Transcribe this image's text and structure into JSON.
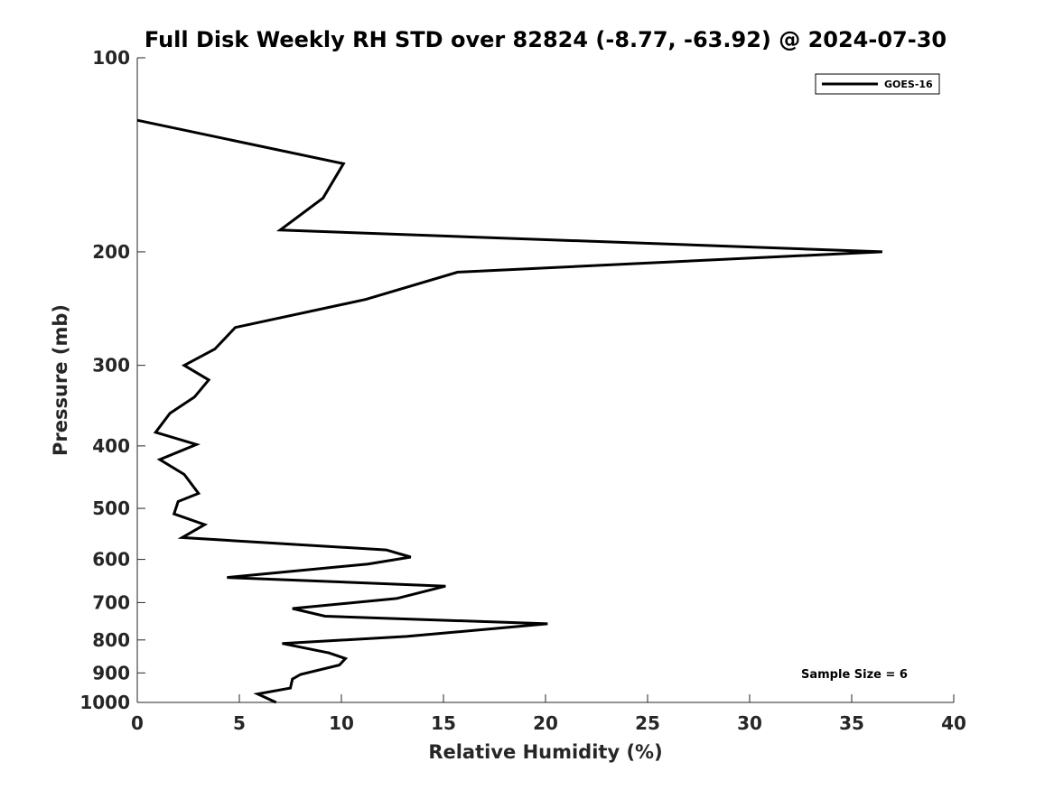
{
  "chart_data": {
    "type": "line",
    "title": "Full Disk Weekly RH STD over 82824 (-8.77, -63.92) @ 2024-07-30",
    "xlabel": "Relative Humidity (%)",
    "ylabel": "Pressure (mb)",
    "xlim": [
      0,
      40
    ],
    "ylim": [
      100,
      1000
    ],
    "y_scale": "log",
    "y_reversed": true,
    "x_ticks": [
      0,
      5,
      10,
      15,
      20,
      25,
      30,
      35,
      40
    ],
    "y_ticks": [
      100,
      200,
      300,
      400,
      500,
      600,
      700,
      800,
      900,
      1000
    ],
    "grid": false,
    "legend_position": "top-right",
    "annotation": "Sample Size = 6",
    "series_color": "#000000",
    "series": [
      {
        "name": "GOES-16",
        "x": [
          0,
          10.1,
          9.1,
          7.0,
          36.5,
          15.7,
          11.2,
          4.8,
          3.8,
          2.3,
          3.5,
          2.8,
          1.6,
          0.9,
          2.9,
          1.1,
          2.3,
          3.0,
          2.0,
          1.8,
          3.3,
          2.2,
          12.2,
          13.4,
          11.3,
          4.4,
          15.1,
          12.7,
          7.6,
          9.2,
          20.1,
          13.2,
          7.1,
          9.4,
          10.2,
          9.9,
          8.0,
          7.6,
          7.5,
          5.9,
          6.8
        ],
        "y": [
          125,
          146,
          165,
          185,
          200,
          215,
          237,
          262,
          283,
          300,
          316,
          336,
          356,
          381,
          398,
          420,
          443,
          474,
          488,
          510,
          530,
          555,
          580,
          595,
          610,
          640,
          660,
          690,
          715,
          735,
          755,
          790,
          810,
          838,
          855,
          875,
          905,
          920,
          950,
          970,
          1000
        ]
      }
    ]
  }
}
